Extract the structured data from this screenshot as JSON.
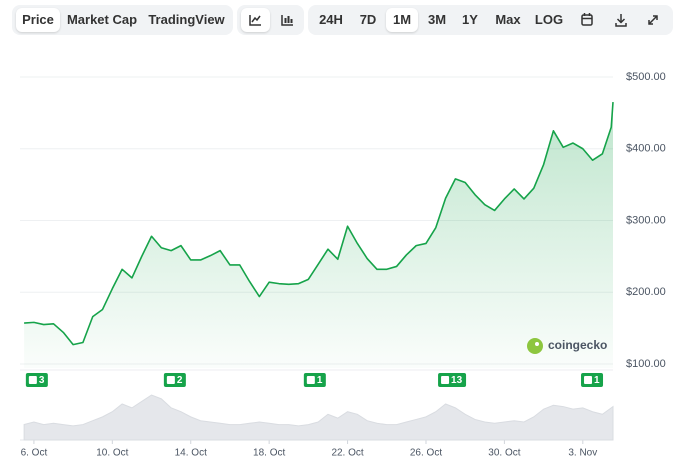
{
  "toolbar": {
    "tabs": [
      "Price",
      "Market Cap",
      "TradingView"
    ],
    "ranges": [
      "24H",
      "7D",
      "1M",
      "3M",
      "1Y",
      "Max",
      "LOG"
    ]
  },
  "chart_data": {
    "type": "line",
    "x": [
      5.5,
      6.0,
      6.5,
      7.0,
      7.5,
      8.0,
      8.5,
      9.0,
      9.5,
      10.0,
      10.5,
      11.0,
      11.5,
      12.0,
      12.5,
      13.0,
      13.5,
      14.0,
      14.5,
      15.0,
      15.5,
      16.0,
      16.5,
      17.0,
      17.5,
      18.0,
      18.5,
      19.0,
      19.5,
      20.0,
      20.5,
      21.0,
      21.5,
      22.0,
      22.5,
      23.0,
      23.5,
      24.0,
      24.5,
      25.0,
      25.5,
      26.0,
      26.5,
      27.0,
      27.5,
      28.0,
      28.5,
      29.0,
      29.5,
      30.0,
      30.5,
      31.0,
      31.5,
      32.0,
      32.5,
      33.0,
      33.5,
      34.0,
      34.5,
      35.0,
      35.45,
      35.54
    ],
    "values": [
      157,
      158,
      155,
      156,
      144,
      127,
      130,
      166,
      176,
      205,
      232,
      220,
      250,
      278,
      262,
      258,
      265,
      245,
      245,
      251,
      258,
      238,
      238,
      215,
      194,
      214,
      212,
      211,
      212,
      218,
      239,
      260,
      246,
      292,
      268,
      247,
      232,
      232,
      236,
      252,
      265,
      268,
      290,
      331,
      358,
      353,
      336,
      322,
      314,
      330,
      344,
      330,
      345,
      378,
      425,
      402,
      408,
      400,
      384,
      393,
      430,
      465
    ],
    "volume": [
      12,
      14,
      12,
      13,
      12,
      11,
      12,
      15,
      18,
      22,
      28,
      25,
      30,
      35,
      32,
      25,
      22,
      18,
      15,
      14,
      13,
      12,
      12,
      13,
      14,
      13,
      12,
      12,
      11,
      12,
      14,
      20,
      17,
      22,
      20,
      15,
      13,
      12,
      12,
      14,
      16,
      18,
      22,
      28,
      25,
      20,
      16,
      14,
      13,
      14,
      15,
      14,
      18,
      24,
      27,
      26,
      24,
      25,
      22,
      20,
      25,
      26
    ],
    "color": "#16a34a",
    "xlim": [
      5.29,
      35.54
    ],
    "xticks": [
      {
        "value": 6,
        "label": "6. Oct"
      },
      {
        "value": 10,
        "label": "10. Oct"
      },
      {
        "value": 14,
        "label": "14. Oct"
      },
      {
        "value": 18,
        "label": "18. Oct"
      },
      {
        "value": 22,
        "label": "22. Oct"
      },
      {
        "value": 26,
        "label": "26. Oct"
      },
      {
        "value": 30,
        "label": "30. Oct"
      },
      {
        "value": 34,
        "label": "3. Nov"
      }
    ],
    "ylim": [
      100,
      500
    ],
    "yticks": [
      {
        "value": 100,
        "label": "$100.00"
      },
      {
        "value": 200,
        "label": "$200.00"
      },
      {
        "value": 300,
        "label": "$300.00"
      },
      {
        "value": 400,
        "label": "$400.00"
      },
      {
        "value": 500,
        "label": "$500.00"
      }
    ],
    "grid": true,
    "events": [
      {
        "x": 6.15,
        "count": 3
      },
      {
        "x": 13.19,
        "count": 2
      },
      {
        "x": 20.33,
        "count": 1
      },
      {
        "x": 27.33,
        "count": 13
      },
      {
        "x": 34.47,
        "count": 1
      }
    ],
    "watermark": "coingecko"
  }
}
